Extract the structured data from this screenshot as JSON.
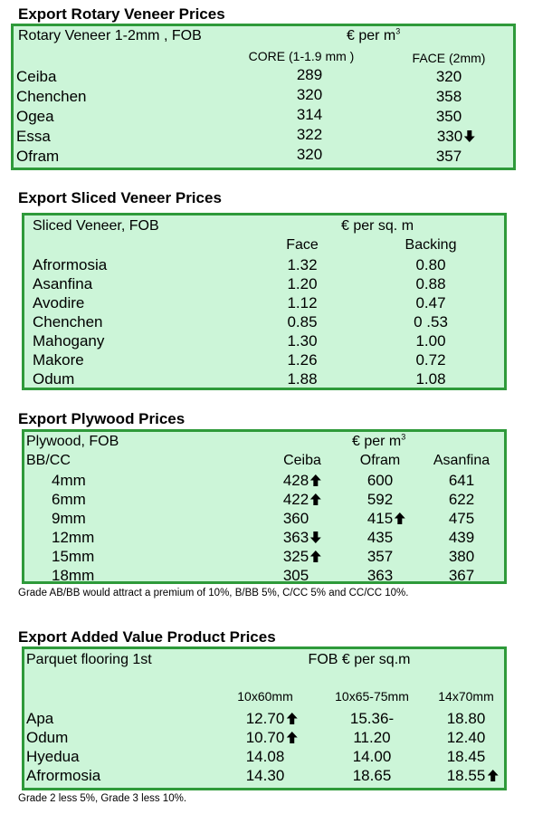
{
  "rotary": {
    "title": "Export Rotary Veneer Prices",
    "label": "Rotary Veneer 1-2mm , FOB",
    "unit_main": "€  per m",
    "unit_sup": "3",
    "col_core": "CORE (1-1.9 mm )",
    "col_face": "FACE (2mm)",
    "rows": [
      {
        "name": "Ceiba",
        "core": "289",
        "face": "320",
        "face_trend": ""
      },
      {
        "name": "Chenchen",
        "core": "320",
        "face": "358",
        "face_trend": ""
      },
      {
        "name": "Ogea",
        "core": "314",
        "face": "350",
        "face_trend": ""
      },
      {
        "name": "Essa",
        "core": "322",
        "face": "330",
        "face_trend": "down"
      },
      {
        "name": "Ofram",
        "core": "320",
        "face": "357",
        "face_trend": ""
      }
    ]
  },
  "sliced": {
    "title": "Export Sliced Veneer Prices",
    "label": "Sliced Veneer, FOB",
    "unit": "€ per sq. m",
    "col_face": "Face",
    "col_backing": "Backing",
    "rows": [
      {
        "name": "Afrormosia",
        "face": "1.32",
        "backing": "0.80"
      },
      {
        "name": "Asanfina",
        "face": "1.20",
        "backing": "0.88"
      },
      {
        "name": "Avodire",
        "face": "1.12",
        "backing": "0.47"
      },
      {
        "name": "Chenchen",
        "face": "0.85",
        "backing": "0 .53"
      },
      {
        "name": "Mahogany",
        "face": "1.30",
        "backing": "1.00"
      },
      {
        "name": "Makore",
        "face": "1.26",
        "backing": "0.72"
      },
      {
        "name": "Odum",
        "face": "1.88",
        "backing": "1.08"
      }
    ]
  },
  "plywood": {
    "title": "Export Plywood Prices",
    "label": "Plywood, FOB",
    "unit_main": "€  per m",
    "unit_sup": "3",
    "grade": "BB/CC",
    "col_ceiba": "Ceiba",
    "col_ofram": "Ofram",
    "col_asanfina": "Asanfina",
    "rows": [
      {
        "size": "4mm",
        "ceiba": "428",
        "ceiba_trend": "up",
        "ofram": "600",
        "ofram_trend": "",
        "asanfina": "641"
      },
      {
        "size": "6mm",
        "ceiba": "422",
        "ceiba_trend": "up",
        "ofram": "592",
        "ofram_trend": "",
        "asanfina": "622"
      },
      {
        "size": "9mm",
        "ceiba": "360",
        "ceiba_trend": "",
        "ofram": "415",
        "ofram_trend": "up",
        "asanfina": "475"
      },
      {
        "size": "12mm",
        "ceiba": "363",
        "ceiba_trend": "down",
        "ofram": "435",
        "ofram_trend": "",
        "asanfina": "439"
      },
      {
        "size": "15mm",
        "ceiba": "325",
        "ceiba_trend": "up",
        "ofram": "357",
        "ofram_trend": "",
        "asanfina": "380"
      },
      {
        "size": "18mm",
        "ceiba": "305",
        "ceiba_trend": "",
        "ofram": "363",
        "ofram_trend": "",
        "asanfina": "367"
      }
    ],
    "note": "Grade AB/BB would attract a premium of 10%, B/BB 5%, C/CC 5% and CC/CC 10%."
  },
  "added_value": {
    "title": "Export Added Value Product Prices",
    "label": "Parquet flooring 1st",
    "unit": "FOB € per sq.m",
    "col_1": "10x60mm",
    "col_2": "10x65-75mm",
    "col_3": "14x70mm",
    "rows": [
      {
        "name": "Apa",
        "v1": "12.70",
        "v1_trend": "up",
        "v2": "15.36-",
        "v3": "18.80",
        "v3_trend": ""
      },
      {
        "name": "Odum",
        "v1": "10.70",
        "v1_trend": "up",
        "v2": "11.20",
        "v3": "12.40",
        "v3_trend": ""
      },
      {
        "name": "Hyedua",
        "v1": "14.08",
        "v1_trend": "",
        "v2": "14.00",
        "v3": "18.45",
        "v3_trend": ""
      },
      {
        "name": "Afrormosia",
        "v1": "14.30",
        "v1_trend": "",
        "v2": "18.65",
        "v3": "18.55",
        "v3_trend": "up"
      }
    ],
    "note": "Grade 2 less 5%, Grade 3 less 10%."
  }
}
